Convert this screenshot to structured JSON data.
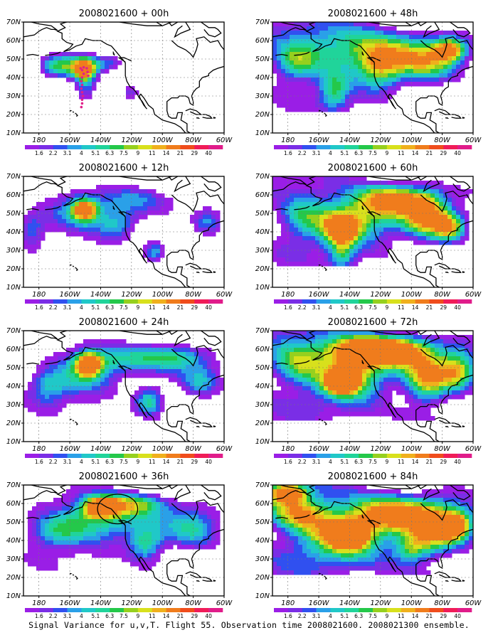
{
  "caption": "Signal Variance for u,v,T. Flight 55. Observation time 2008021600. 2008021300 ensemble.",
  "colorbar": {
    "labels": [
      "1.6",
      "2.2",
      "3.1",
      "4",
      "5.1",
      "6.3",
      "7.5",
      "9",
      "11",
      "14",
      "21",
      "29",
      "40"
    ],
    "colors": [
      "#9a1ee6",
      "#7a2ee6",
      "#3050f0",
      "#2aa0e8",
      "#20c8c8",
      "#20d49a",
      "#24c84a",
      "#96d01e",
      "#d8e01c",
      "#f0b01c",
      "#f07c1c",
      "#f04c1c",
      "#f01c58",
      "#e01c8a"
    ]
  },
  "map": {
    "lon_labels": [
      "180",
      "160W",
      "140W",
      "120W",
      "100W",
      "80W",
      "60W"
    ],
    "lat_labels": [
      "10N",
      "20N",
      "30N",
      "40N",
      "50N",
      "60N",
      "70N"
    ],
    "lon_range": [
      -190,
      -60
    ],
    "lat_range": [
      10,
      70
    ]
  },
  "chart_data": [
    {
      "type": "heatmap",
      "title": "2008021600 + 00h",
      "lead_hours": 0,
      "blobs": [
        [
          -160,
          47,
          15,
          7,
          0.45
        ],
        [
          -150,
          37,
          6,
          11,
          0.35
        ],
        [
          -150,
          45,
          8,
          6,
          0.8
        ],
        [
          -120,
          32,
          5,
          4,
          0.3
        ],
        [
          -170,
          46,
          12,
          6,
          0.4
        ],
        [
          -135,
          48,
          10,
          5,
          0.4
        ]
      ],
      "extra": {
        "track": true
      }
    },
    {
      "type": "heatmap",
      "title": "2008021600 + 12h",
      "lead_hours": 12,
      "blobs": [
        [
          -158,
          50,
          20,
          11,
          0.5
        ],
        [
          -150,
          52,
          8,
          6,
          0.8
        ],
        [
          -130,
          44,
          14,
          9,
          0.45
        ],
        [
          -105,
          30,
          7,
          6,
          0.5
        ],
        [
          -70,
          45,
          10,
          8,
          0.4
        ],
        [
          -120,
          58,
          25,
          8,
          0.35
        ],
        [
          -185,
          42,
          10,
          10,
          0.4
        ]
      ],
      "extra": {}
    },
    {
      "type": "heatmap",
      "title": "2008021600 + 24h",
      "lead_hours": 24,
      "blobs": [
        [
          -150,
          48,
          22,
          12,
          0.55
        ],
        [
          -148,
          52,
          8,
          6,
          0.85
        ],
        [
          -108,
          32,
          10,
          8,
          0.6
        ],
        [
          -120,
          55,
          30,
          8,
          0.4
        ],
        [
          -75,
          42,
          15,
          10,
          0.45
        ],
        [
          -175,
          40,
          14,
          10,
          0.45
        ],
        [
          -90,
          56,
          20,
          6,
          0.35
        ]
      ],
      "extra": {}
    },
    {
      "type": "heatmap",
      "title": "2008021600 + 36h",
      "lead_hours": 36,
      "blobs": [
        [
          -140,
          52,
          28,
          12,
          0.6
        ],
        [
          -140,
          58,
          10,
          5,
          0.85
        ],
        [
          -110,
          38,
          12,
          10,
          0.55
        ],
        [
          -170,
          45,
          20,
          10,
          0.5
        ],
        [
          -80,
          45,
          18,
          12,
          0.45
        ],
        [
          -120,
          60,
          25,
          6,
          0.5
        ]
      ],
      "extra": {
        "ellipse": [
          -129,
          57,
          13,
          8
        ]
      }
    },
    {
      "type": "heatmap",
      "title": "2008021600 + 48h",
      "lead_hours": 48,
      "blobs": [
        [
          -140,
          55,
          45,
          14,
          0.6
        ],
        [
          -120,
          45,
          15,
          12,
          0.55
        ],
        [
          -90,
          48,
          20,
          12,
          0.55
        ],
        [
          -75,
          55,
          10,
          6,
          0.75
        ],
        [
          -150,
          32,
          10,
          12,
          0.45
        ],
        [
          -175,
          48,
          15,
          10,
          0.5
        ]
      ],
      "extra": {}
    },
    {
      "type": "heatmap",
      "title": "2008021600 + 60h",
      "lead_hours": 60,
      "blobs": [
        [
          -145,
          42,
          12,
          8,
          0.8
        ],
        [
          -130,
          50,
          30,
          14,
          0.65
        ],
        [
          -90,
          48,
          14,
          14,
          0.75
        ],
        [
          -110,
          58,
          20,
          7,
          0.6
        ],
        [
          -75,
          42,
          10,
          8,
          0.7
        ],
        [
          -170,
          48,
          18,
          12,
          0.55
        ],
        [
          -145,
          28,
          8,
          10,
          0.45
        ]
      ],
      "extra": {}
    },
    {
      "type": "heatmap",
      "title": "2008021600 + 72h",
      "lead_hours": 72,
      "blobs": [
        [
          -140,
          48,
          25,
          14,
          0.8
        ],
        [
          -145,
          42,
          10,
          6,
          0.9
        ],
        [
          -110,
          60,
          25,
          8,
          0.7
        ],
        [
          -90,
          42,
          14,
          14,
          0.75
        ],
        [
          -70,
          48,
          12,
          10,
          0.7
        ],
        [
          -175,
          52,
          18,
          12,
          0.6
        ],
        [
          -130,
          60,
          30,
          8,
          0.6
        ]
      ],
      "extra": {}
    },
    {
      "type": "heatmap",
      "title": "2008021600 + 84h",
      "lead_hours": 84,
      "blobs": [
        [
          -145,
          45,
          30,
          14,
          0.85
        ],
        [
          -140,
          43,
          10,
          6,
          1.0
        ],
        [
          -110,
          55,
          25,
          10,
          0.7
        ],
        [
          -85,
          45,
          16,
          14,
          0.75
        ],
        [
          -70,
          48,
          10,
          8,
          0.8
        ],
        [
          -175,
          55,
          20,
          10,
          0.7
        ],
        [
          -180,
          66,
          12,
          5,
          0.8
        ],
        [
          -100,
          35,
          12,
          8,
          0.55
        ]
      ],
      "extra": {}
    }
  ]
}
